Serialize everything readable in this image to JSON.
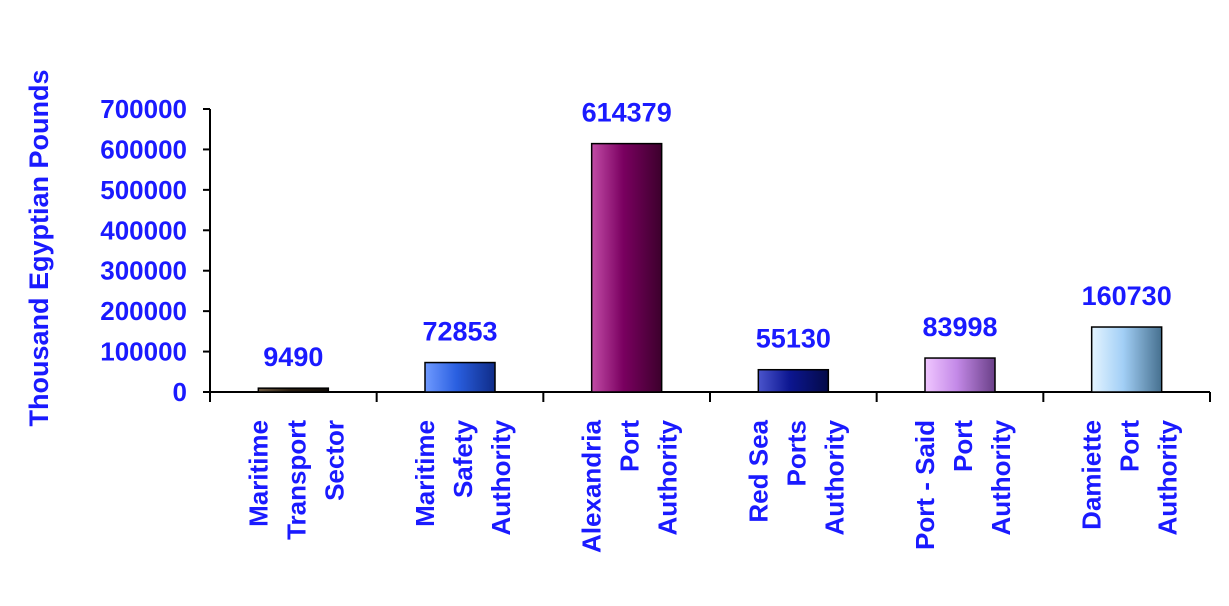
{
  "chart_data": {
    "type": "bar",
    "ylabel": "Thousand Egyptian Pounds",
    "xlabel": "",
    "ylim": [
      0,
      700000
    ],
    "ytick_values": [
      0,
      100000,
      200000,
      300000,
      400000,
      500000,
      600000,
      700000
    ],
    "ytick_labels": [
      "0",
      "100000",
      "200000",
      "300000",
      "400000",
      "500000",
      "600000",
      "700000"
    ],
    "categories": [
      [
        "Maritime",
        "Transport",
        "Sector"
      ],
      [
        "Maritime",
        "Safety",
        "Authority"
      ],
      [
        "Alexandria",
        "Port",
        "Authority"
      ],
      [
        "Red Sea",
        "Ports",
        "Authority"
      ],
      [
        "Port - Said",
        "Port",
        "Authority"
      ],
      [
        "Damiette",
        "Port",
        "Authority"
      ]
    ],
    "values": [
      9490,
      72853,
      614379,
      55130,
      83998,
      160730
    ],
    "data_labels": [
      "9490",
      "72853",
      "614379",
      "55130",
      "83998",
      "160730"
    ],
    "bar_colors": [
      [
        "#6e5a42",
        "#2a1e10",
        "#0f0a05"
      ],
      [
        "#6f9aff",
        "#2a5fe0",
        "#0f2c88"
      ],
      [
        "#c24ca7",
        "#7a0060",
        "#3c002c"
      ],
      [
        "#4a54cc",
        "#0c1690",
        "#040a48"
      ],
      [
        "#f0c6ff",
        "#c48ae8",
        "#6a3f88"
      ],
      [
        "#e4f4ff",
        "#a2cff6",
        "#46708f"
      ]
    ],
    "text_color": "#1a1aff",
    "axis_color": "#000000",
    "grid": false,
    "legend": "none"
  }
}
